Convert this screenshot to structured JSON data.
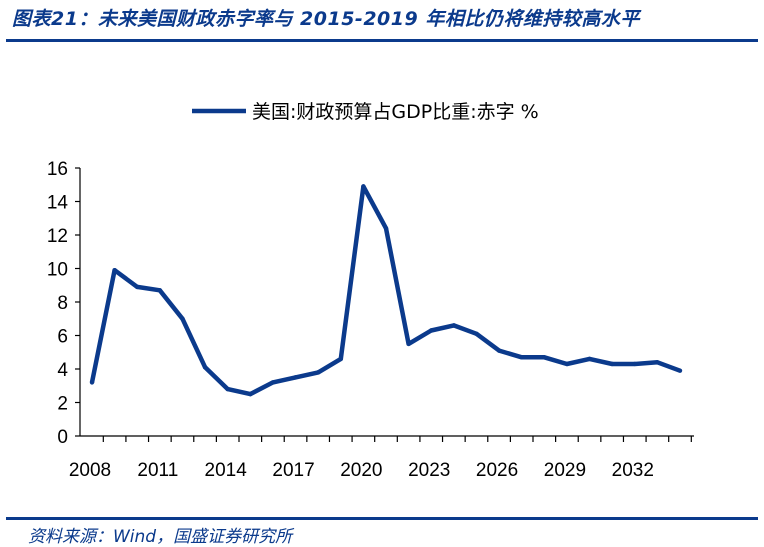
{
  "figure": {
    "title": "图表21：未来美国财政赤字率与 2015-2019 年相比仍将维持较高水平",
    "source": "资料来源：Wind，国盛证券研究所"
  },
  "chart_data": {
    "type": "line",
    "title": "",
    "xlabel": "",
    "ylabel": "",
    "ylim": [
      0,
      16
    ],
    "xlim": [
      2008,
      2034
    ],
    "yticks": [
      0,
      2,
      4,
      6,
      8,
      10,
      12,
      14,
      16
    ],
    "xticks": [
      2008,
      2011,
      2014,
      2017,
      2020,
      2023,
      2026,
      2029,
      2032
    ],
    "grid": false,
    "legend_position": "top-center",
    "series": [
      {
        "name": "美国:财政预算占GDP比重:赤字 %",
        "color": "#0b3a8c",
        "x": [
          2008,
          2009,
          2010,
          2011,
          2012,
          2013,
          2014,
          2015,
          2016,
          2017,
          2018,
          2019,
          2020,
          2021,
          2022,
          2023,
          2024,
          2025,
          2026,
          2027,
          2028,
          2029,
          2030,
          2031,
          2032,
          2033,
          2034
        ],
        "values": [
          3.2,
          9.9,
          8.9,
          8.7,
          7.0,
          4.1,
          2.8,
          2.5,
          3.2,
          3.5,
          3.8,
          4.6,
          14.9,
          12.4,
          5.5,
          6.3,
          6.6,
          6.1,
          5.1,
          4.7,
          4.7,
          4.3,
          4.6,
          4.3,
          4.3,
          4.4,
          3.9
        ]
      }
    ]
  }
}
